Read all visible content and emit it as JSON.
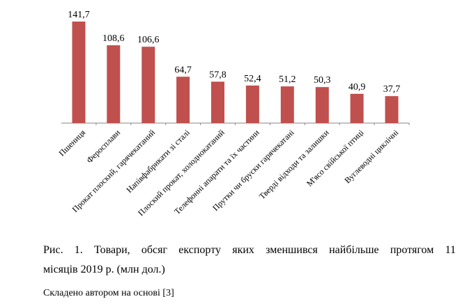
{
  "chart_data": {
    "type": "bar",
    "categories": [
      "Пшениця",
      "Феросплави",
      "Прокат плоский, гарячекатаний",
      "Напівфабрикати зі сталі",
      "Плоский прокат, холоднокатаний",
      "Телефонні апарати та їх частини",
      "Прутки чи бруски гарячекатані",
      "Тверді відходи та залишки",
      "М'ясо свійської птиці",
      "Вуглеводні циклічні"
    ],
    "values": [
      141.7,
      108.6,
      106.6,
      64.7,
      57.8,
      52.4,
      51.2,
      50.3,
      40.9,
      37.7
    ],
    "data_labels": [
      "141,7",
      "108,6",
      "106,6",
      "64,7",
      "57,8",
      "52,4",
      "51,2",
      "50,3",
      "40,9",
      "37,7"
    ],
    "bar_color": "#c0504d",
    "axis_color": "#868686",
    "grid": false,
    "legend": "none"
  },
  "caption": {
    "line1": "Рис. 1. Товари, обсяг експорту яких зменшився найбільше протягом 11",
    "line2": "місяців 2019 р. (млн дол.)"
  },
  "source_note": "Складено автором на основі [3]"
}
